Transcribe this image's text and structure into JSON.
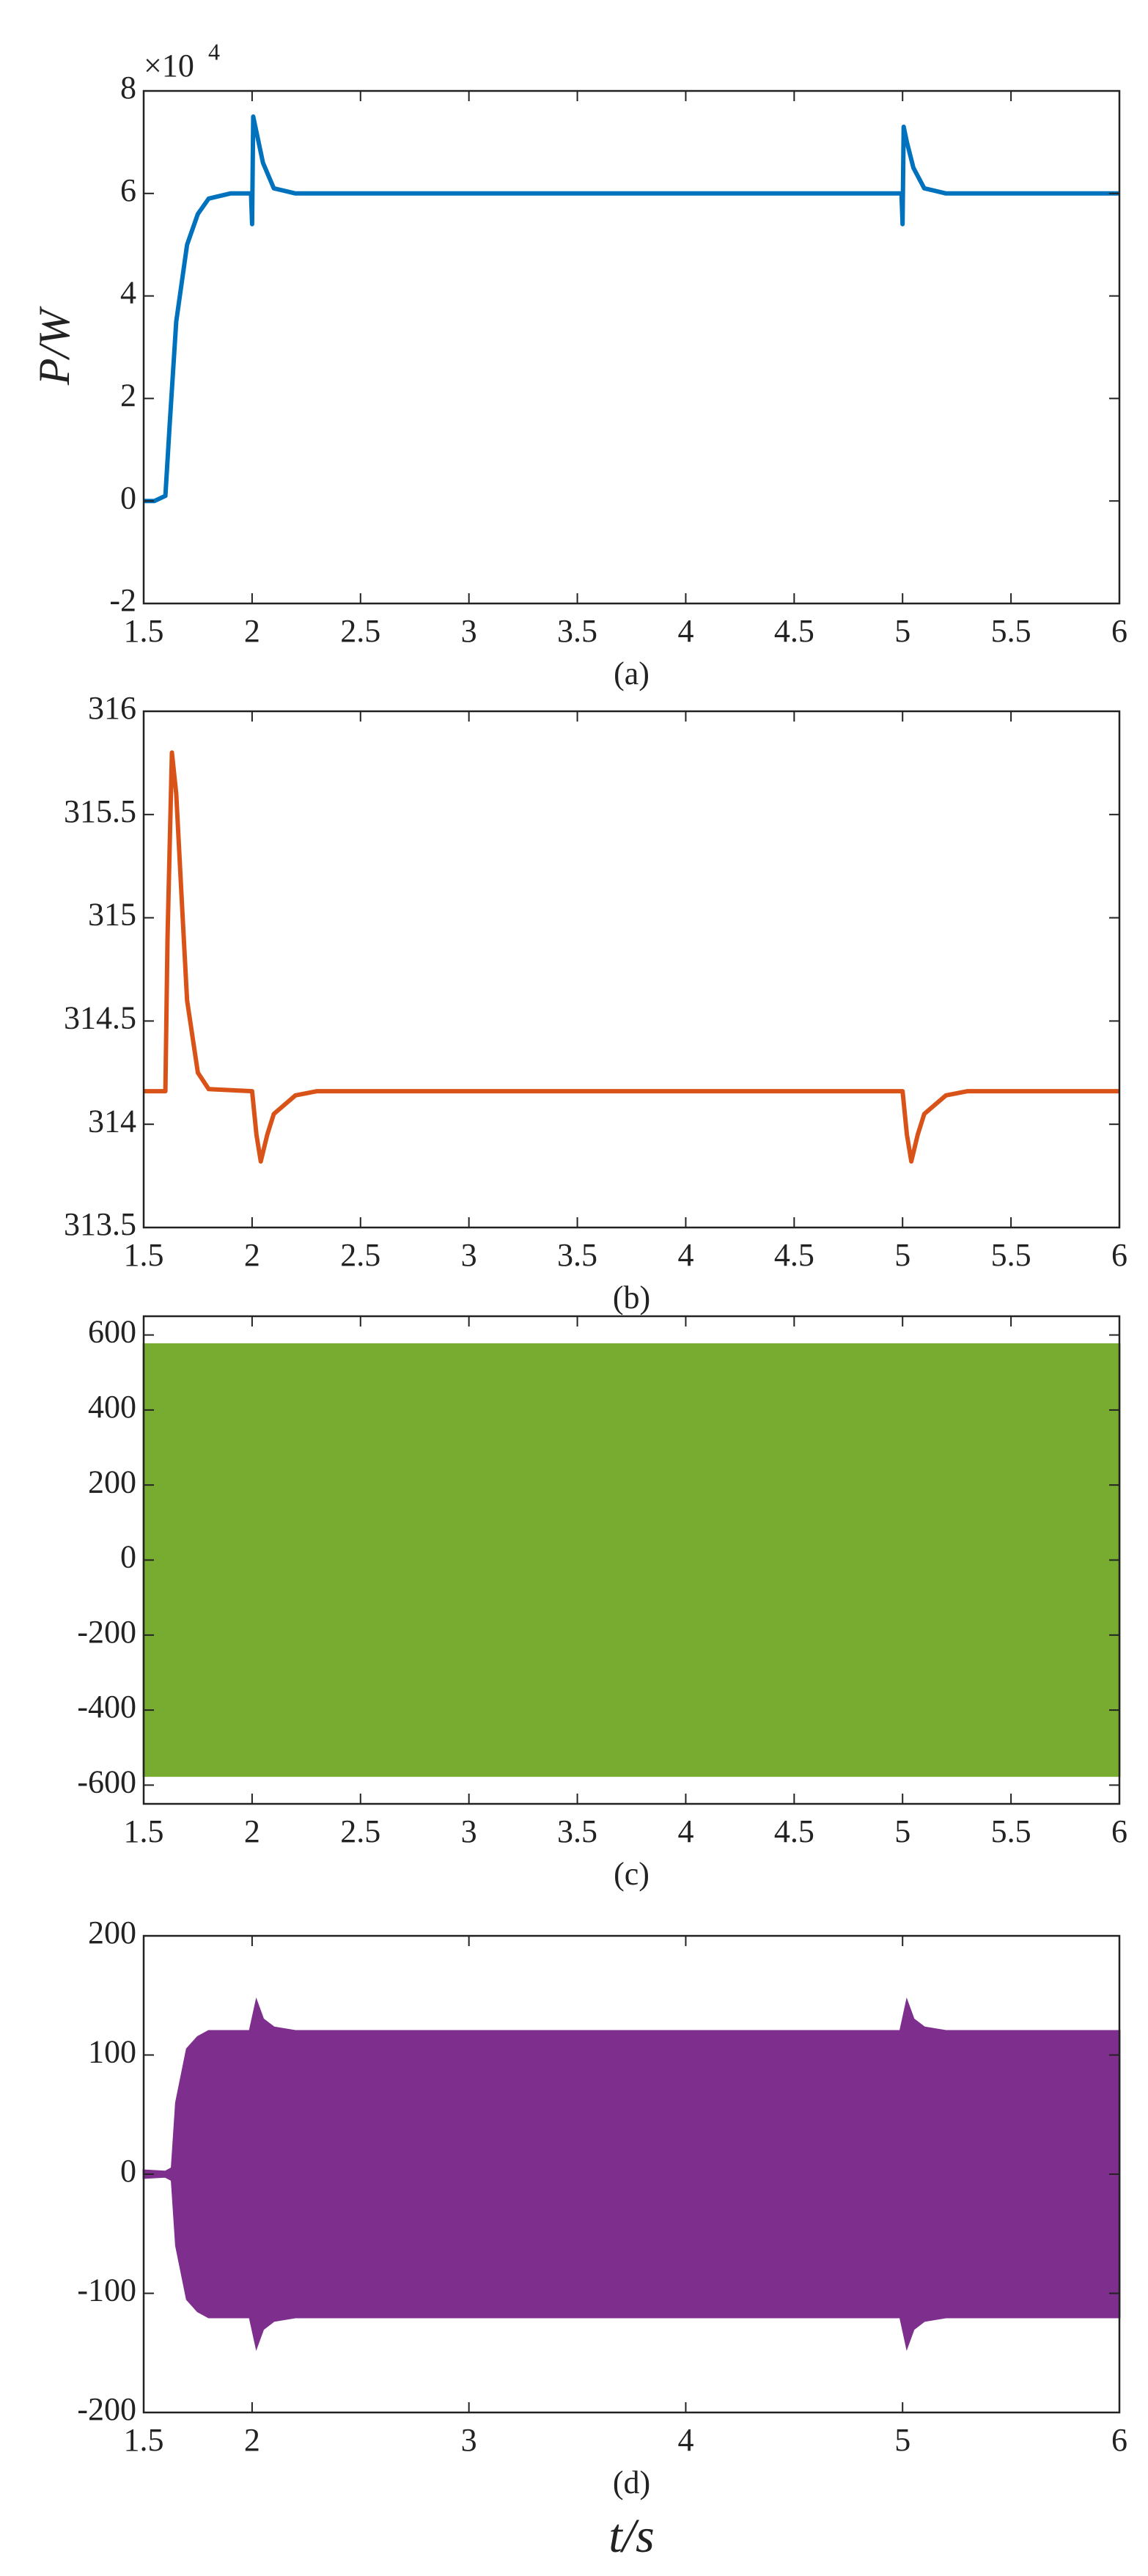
{
  "chart_data": [
    {
      "type": "line",
      "color": "#0072bd",
      "scale_label": "×10",
      "scale_exponent": "4",
      "ylabel": "P/W",
      "xlabel": "(a)",
      "x": [
        1.5,
        1.55,
        1.6,
        1.62,
        1.65,
        1.7,
        1.75,
        1.8,
        1.9,
        1.995,
        2.0,
        2.005,
        2.02,
        2.05,
        2.1,
        2.2,
        2.5,
        3,
        3.5,
        4,
        4.5,
        4.995,
        5.0,
        5.005,
        5.02,
        5.05,
        5.1,
        5.2,
        5.5,
        6
      ],
      "values": [
        0,
        0,
        0.1,
        1.5,
        3.5,
        5,
        5.6,
        5.9,
        6,
        6,
        5.4,
        7.5,
        7.2,
        6.6,
        6.1,
        6,
        6,
        6,
        6,
        6,
        6,
        6,
        5.4,
        7.3,
        7.0,
        6.5,
        6.1,
        6,
        6,
        6
      ],
      "xlim": [
        1.5,
        6
      ],
      "xticks": [
        1.5,
        2,
        2.5,
        3,
        3.5,
        4,
        4.5,
        5,
        5.5,
        6
      ],
      "ylim": [
        -2,
        8
      ],
      "yticks": [
        -2,
        0,
        2,
        4,
        6,
        8
      ]
    },
    {
      "type": "line",
      "color": "#d95319",
      "xlabel": "(b)",
      "x": [
        1.5,
        1.6,
        1.61,
        1.63,
        1.65,
        1.68,
        1.7,
        1.75,
        1.8,
        2.0,
        2.02,
        2.04,
        2.07,
        2.1,
        2.2,
        2.3,
        5.0,
        5.02,
        5.04,
        5.07,
        5.1,
        5.2,
        5.3,
        6
      ],
      "values": [
        314.16,
        314.16,
        314.9,
        315.8,
        315.6,
        315.0,
        314.6,
        314.25,
        314.17,
        314.16,
        313.95,
        313.82,
        313.95,
        314.05,
        314.14,
        314.16,
        314.16,
        313.95,
        313.82,
        313.95,
        314.05,
        314.14,
        314.16,
        314.16
      ],
      "xlim": [
        1.5,
        6
      ],
      "xticks": [
        1.5,
        2,
        2.5,
        3,
        3.5,
        4,
        4.5,
        5,
        5.5,
        6
      ],
      "ylim": [
        313.5,
        316
      ],
      "yticks": [
        313.5,
        314,
        314.5,
        315,
        315.5,
        316
      ]
    },
    {
      "type": "area",
      "color": "#77ac30",
      "xlabel": "(c)",
      "x": [
        1.5,
        2,
        2.5,
        3,
        3.5,
        4,
        4.5,
        5,
        5.5,
        6
      ],
      "high": [
        575,
        575,
        575,
        575,
        575,
        575,
        575,
        575,
        575,
        575
      ],
      "low": [
        -575,
        -575,
        -575,
        -575,
        -575,
        -575,
        -575,
        -575,
        -575,
        -575
      ],
      "xlim": [
        1.5,
        6
      ],
      "xticks": [
        1.5,
        2,
        2.5,
        3,
        3.5,
        4,
        4.5,
        5,
        5.5,
        6
      ],
      "ylim": [
        -650,
        650
      ],
      "yticks": [
        -600,
        -400,
        -200,
        0,
        200,
        400,
        600
      ]
    },
    {
      "type": "area",
      "color": "#7e2f8e",
      "xlabel": "(d)",
      "axis_label": "t/s",
      "x": [
        1.5,
        1.6,
        1.63,
        1.65,
        1.7,
        1.75,
        1.8,
        1.95,
        1.99,
        2.02,
        2.05,
        2.1,
        2.2,
        3,
        4,
        4.95,
        4.99,
        5.02,
        5.05,
        5.1,
        5.2,
        6
      ],
      "high": [
        3,
        2,
        5,
        60,
        105,
        115,
        120,
        120,
        120,
        145,
        130,
        123,
        120,
        120,
        120,
        120,
        120,
        145,
        130,
        123,
        120,
        120
      ],
      "low": [
        -3,
        -2,
        -5,
        -60,
        -105,
        -115,
        -120,
        -120,
        -120,
        -145,
        -130,
        -123,
        -120,
        -120,
        -120,
        -120,
        -120,
        -145,
        -130,
        -123,
        -120,
        -120
      ],
      "xlim": [
        1.5,
        6
      ],
      "xticks": [
        1.5,
        2,
        3,
        4,
        5,
        6
      ],
      "ylim": [
        -200,
        200
      ],
      "yticks": [
        -200,
        -100,
        0,
        100,
        200
      ]
    }
  ]
}
